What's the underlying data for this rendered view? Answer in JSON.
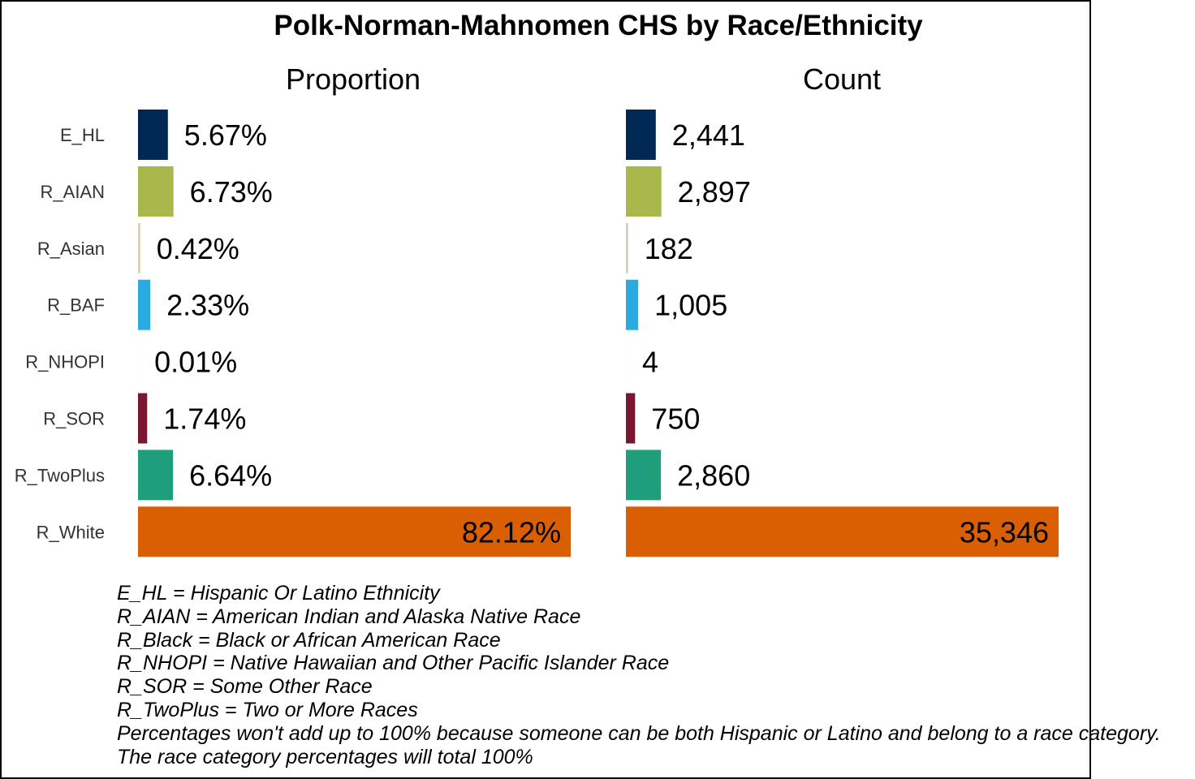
{
  "chart_data": {
    "title": "Polk-Norman-Mahnomen CHS by Race/Ethnicity",
    "type": "bar",
    "orientation": "horizontal",
    "categories": [
      "E_HL",
      "R_AIAN",
      "R_Asian",
      "R_BAF",
      "R_NHOPI",
      "R_SOR",
      "R_TwoPlus",
      "R_White"
    ],
    "colors": [
      "#002855",
      "#A9B84A",
      "#D8CCB4",
      "#29ABE2",
      "#8CC4E4",
      "#7A1630",
      "#1E9E7A",
      "#D95F02"
    ],
    "panels": [
      {
        "title": "Proportion",
        "values": [
          5.67,
          6.73,
          0.42,
          2.33,
          0.01,
          1.74,
          6.64,
          82.12
        ],
        "labels": [
          "5.67%",
          "6.73%",
          "0.42%",
          "2.33%",
          "0.01%",
          "1.74%",
          "6.64%",
          "82.12%"
        ],
        "xlim": [
          0,
          82.12
        ]
      },
      {
        "title": "Count",
        "values": [
          2441,
          2897,
          182,
          1005,
          4,
          750,
          2860,
          35346
        ],
        "labels": [
          "2,441",
          "2,897",
          "182",
          "1,005",
          "4",
          "750",
          "2,860",
          "35,346"
        ],
        "xlim": [
          0,
          35346
        ]
      }
    ],
    "grid": false,
    "legend": "none"
  },
  "notes": [
    "E_HL = Hispanic Or Latino Ethnicity",
    "R_AIAN = American Indian and Alaska Native Race",
    "R_Black = Black or African American Race",
    "R_NHOPI = Native Hawaiian and Other Pacific Islander Race",
    "R_SOR = Some Other Race",
    "R_TwoPlus = Two or More Races",
    "Percentages won't add up to 100% because someone can be both Hispanic or Latino and belong to a race category.",
    "The race category percentages will total 100%"
  ]
}
